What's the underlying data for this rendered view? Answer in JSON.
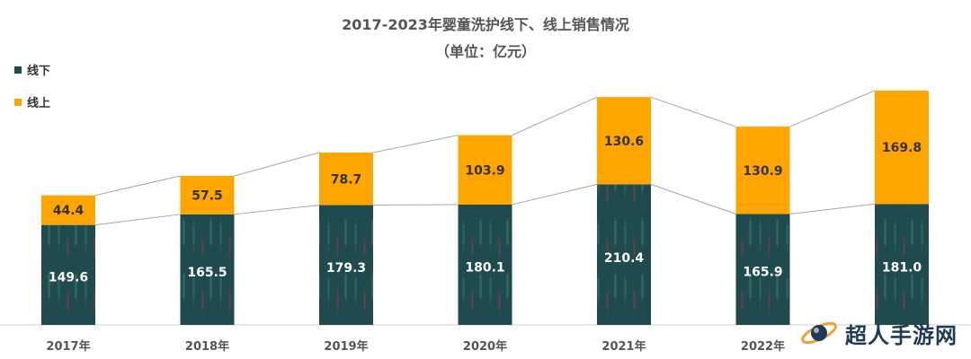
{
  "chart_data": {
    "type": "bar",
    "stacked": true,
    "title": "2017-2023年婴童洗护线下、线上销售情况",
    "subtitle": "（单位：亿元）",
    "categories": [
      "2017年",
      "2018年",
      "2019年",
      "2020年",
      "2021年",
      "2022年",
      ""
    ],
    "series": [
      {
        "name": "线下",
        "color": "#1f4a4e",
        "values": [
          149.6,
          165.5,
          179.3,
          180.1,
          210.4,
          165.9,
          181.0
        ]
      },
      {
        "name": "线上",
        "color": "#ffa500",
        "values": [
          44.4,
          57.5,
          78.7,
          103.9,
          130.6,
          130.9,
          169.8
        ]
      }
    ],
    "ylim": [
      0,
      352
    ],
    "grid": false,
    "legend_position": "top-left"
  },
  "watermark": {
    "text": "超人手游网"
  },
  "colors": {
    "offline": "#1f4a4e",
    "online": "#ffa500",
    "connector": "#a6a6a6"
  }
}
